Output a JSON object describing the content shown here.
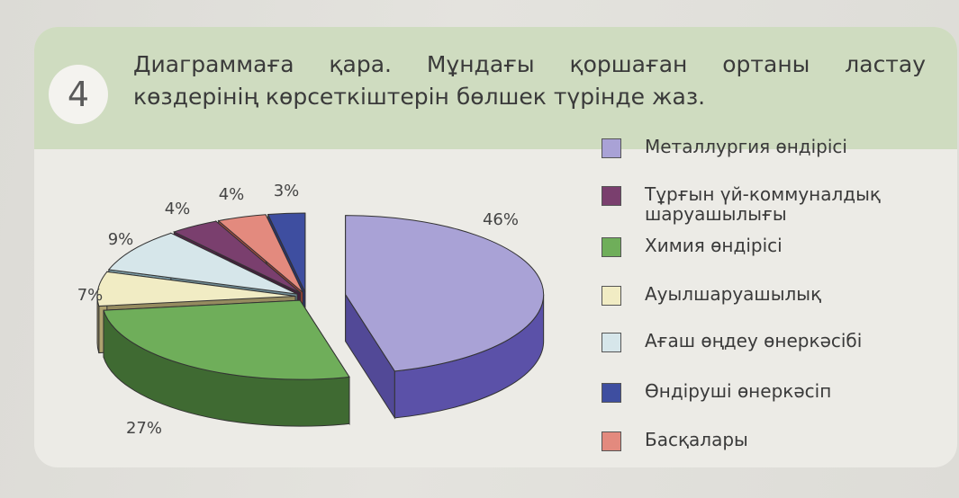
{
  "task": {
    "number": "4",
    "line1": "Диаграммаға қара. Мұндағы қоршаған ортаны ластау",
    "line2": "көздерінің көрсеткіштерін бөлшек түрінде жаз."
  },
  "chart_data": {
    "type": "pie",
    "title": "",
    "legend_position": "right",
    "slices": [
      {
        "name": "Металлургия өндірісі",
        "value": 46,
        "label": "46%",
        "color": "#a9a2d6",
        "side_color": "#5b51a8"
      },
      {
        "name": "Химия өндірісі",
        "value": 27,
        "label": "27%",
        "color": "#6fae5a",
        "side_color": "#3f6a32"
      },
      {
        "name": "Ауылшаруашылық",
        "value": 7,
        "label": "7%",
        "color": "#f1ecc4",
        "side_color": "#a69a6a"
      },
      {
        "name": "Ағаш өңдеу өнеркәсібі",
        "value": 9,
        "label": "9%",
        "color": "#d6e6ea",
        "side_color": "#7a9aa4"
      },
      {
        "name": "Тұрғын үй-коммуналдық шаруашылығы",
        "value": 4,
        "label": "4%",
        "color": "#7a3f6e",
        "side_color": "#4a2442"
      },
      {
        "name": "Басқалары",
        "value": 4,
        "label": "4%",
        "color": "#e38a7e",
        "side_color": "#a4473d"
      },
      {
        "name": "Өндіруші өнеркәсіп",
        "value": 3,
        "label": "3%",
        "color": "#3e4ea0",
        "side_color": "#26306a"
      }
    ]
  },
  "legend": {
    "items": [
      {
        "label": "Металлургия өндірісі",
        "color": "#a9a2d6"
      },
      {
        "label": "Тұрғын үй-коммуналдық",
        "label2": "шаруашылығы",
        "color": "#7a3f6e"
      },
      {
        "label": "Химия өндірісі",
        "color": "#6fae5a"
      },
      {
        "label": "Ауылшаруашылық",
        "color": "#f1ecc4"
      },
      {
        "label": "Ағаш өңдеу өнеркәсібі",
        "color": "#d6e6ea"
      },
      {
        "label": "Өндіруші өнеркәсіп",
        "color": "#3e4ea0"
      },
      {
        "label": "Басқалары",
        "color": "#e38a7e"
      }
    ]
  }
}
